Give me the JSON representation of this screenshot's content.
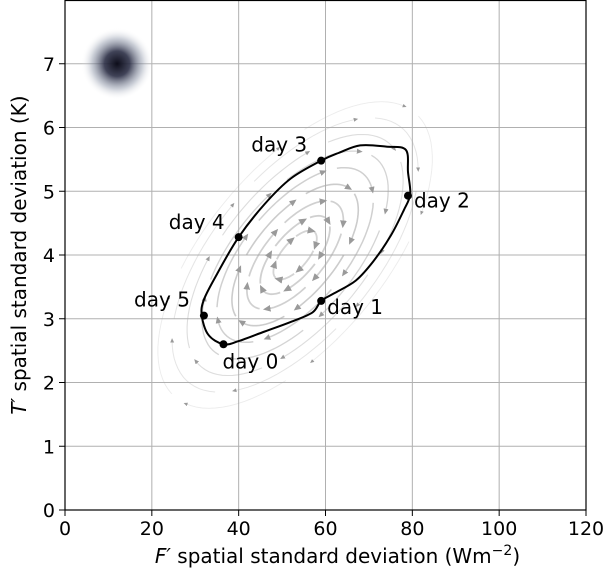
{
  "chart_data": {
    "type": "line",
    "xlabel_parts": {
      "prime_symbol": "F′",
      "text": " spatial standard deviation (Wm",
      "exponent": "−2",
      "close": ")"
    },
    "ylabel_parts": {
      "prime_symbol": "T′",
      "text": " spatial standard deviation (K)"
    },
    "xlim": [
      0,
      120
    ],
    "ylim": [
      0,
      8
    ],
    "xticks": [
      0,
      20,
      40,
      60,
      80,
      100,
      120
    ],
    "yticks": [
      0,
      1,
      2,
      3,
      4,
      5,
      6,
      7
    ],
    "grid": true,
    "series": [
      {
        "style": "closed-cycle",
        "color": "#000000",
        "x": [
          36.5,
          40,
          46,
          52,
          57,
          59,
          62,
          67,
          71,
          75,
          78,
          79.5,
          79,
          78.5,
          74,
          68,
          63,
          59,
          52,
          46,
          40,
          35,
          32,
          31.5,
          33,
          36.5
        ],
        "y": [
          2.6,
          2.65,
          2.8,
          2.95,
          3.1,
          3.28,
          3.4,
          3.6,
          3.9,
          4.3,
          4.7,
          4.95,
          5.3,
          5.65,
          5.7,
          5.72,
          5.6,
          5.48,
          5.2,
          4.8,
          4.28,
          3.7,
          3.3,
          3.05,
          2.75,
          2.6
        ]
      }
    ],
    "points": [
      {
        "label": "day 0",
        "x": 36.5,
        "y": 2.6
      },
      {
        "label": "day 1",
        "x": 59,
        "y": 3.28
      },
      {
        "label": "day 2",
        "x": 79,
        "y": 4.93
      },
      {
        "label": "day 3",
        "x": 59,
        "y": 5.48
      },
      {
        "label": "day 4",
        "x": 40,
        "y": 4.28
      },
      {
        "label": "day 5",
        "x": 32,
        "y": 3.05
      }
    ],
    "streamline_field": {
      "center": [
        53,
        4.0
      ],
      "color": "#aaaaaa"
    },
    "blob": {
      "x": 12,
      "y": 7.0,
      "color": "#0d0d1a"
    }
  }
}
